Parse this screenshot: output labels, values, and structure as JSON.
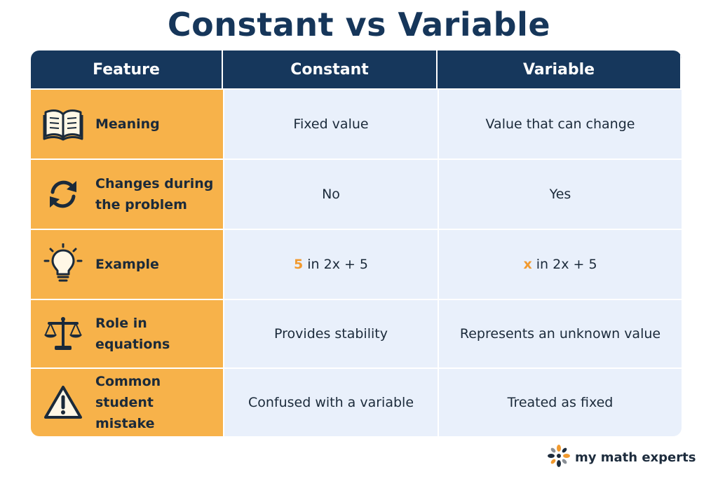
{
  "title": "Constant vs Variable",
  "headers": [
    "Feature",
    "Constant",
    "Variable"
  ],
  "rows": [
    {
      "icon": "book-icon",
      "feature": "Meaning",
      "constant": "Fixed value",
      "variable": "Value that can change"
    },
    {
      "icon": "refresh-icon",
      "feature": "Changes during\nthe problem",
      "constant": "No",
      "variable": "Yes"
    },
    {
      "icon": "lightbulb-icon",
      "feature": "Example",
      "constant_hl": "5",
      "constant_rest": " in 2x + 5",
      "variable_hl": "x",
      "variable_rest": " in 2x + 5"
    },
    {
      "icon": "scale-icon",
      "feature": "Role in equations",
      "constant": "Provides stability",
      "variable": "Represents an unknown value"
    },
    {
      "icon": "warning-icon",
      "feature": "Common student\nmistake",
      "constant": "Confused with a variable",
      "variable": "Treated as fixed"
    }
  ],
  "brand": {
    "name": "my math experts"
  },
  "colors": {
    "header": "#16375c",
    "feature_bg": "#f7b24a",
    "cell_bg": "#e9f0fb",
    "highlight": "#f29a2e"
  }
}
